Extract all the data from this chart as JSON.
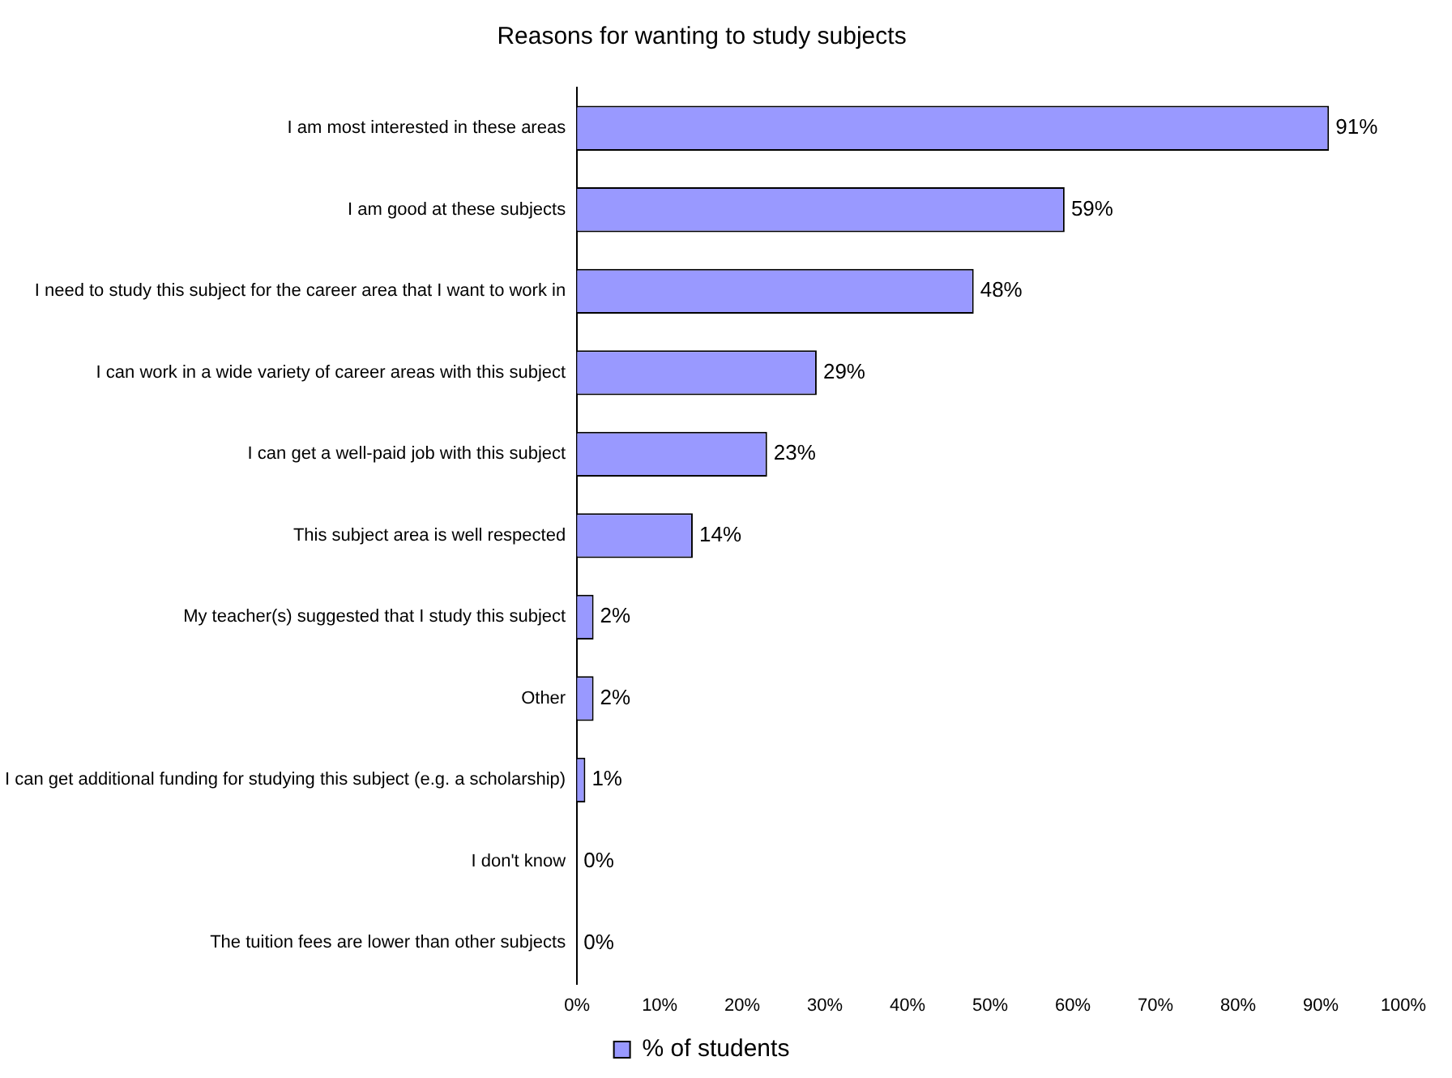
{
  "chart_data": {
    "type": "bar",
    "orientation": "horizontal",
    "title": "Reasons for wanting to study subjects",
    "categories": [
      "I am most interested in these areas",
      "I am good at these subjects",
      "I need to study this subject for the career area that I want to work in",
      "I can work in a wide variety of career areas with this subject",
      "I can get a well-paid job with this subject",
      "This subject area is well respected",
      "My teacher(s) suggested that I study this subject",
      "Other",
      "I can get additional funding for studying this subject (e.g. a scholarship)",
      "I don't know",
      "The tuition fees are lower than other subjects"
    ],
    "series": [
      {
        "name": "% of students",
        "color": "#9999ff",
        "values": [
          91,
          59,
          48,
          29,
          23,
          14,
          2,
          2,
          1,
          0,
          0
        ]
      }
    ],
    "value_labels": [
      "91%",
      "59%",
      "48%",
      "29%",
      "23%",
      "14%",
      "2%",
      "2%",
      "1%",
      "0%",
      "0%"
    ],
    "xlim": [
      0,
      100
    ],
    "xticks": [
      {
        "value": 0,
        "label": "0%"
      },
      {
        "value": 10,
        "label": "10%"
      },
      {
        "value": 20,
        "label": "20%"
      },
      {
        "value": 30,
        "label": "30%"
      },
      {
        "value": 40,
        "label": "40%"
      },
      {
        "value": 50,
        "label": "50%"
      },
      {
        "value": 60,
        "label": "60%"
      },
      {
        "value": 70,
        "label": "70%"
      },
      {
        "value": 80,
        "label": "80%"
      },
      {
        "value": 90,
        "label": "90%"
      },
      {
        "value": 100,
        "label": "100%"
      }
    ],
    "grid": false,
    "legend": "bottom"
  }
}
